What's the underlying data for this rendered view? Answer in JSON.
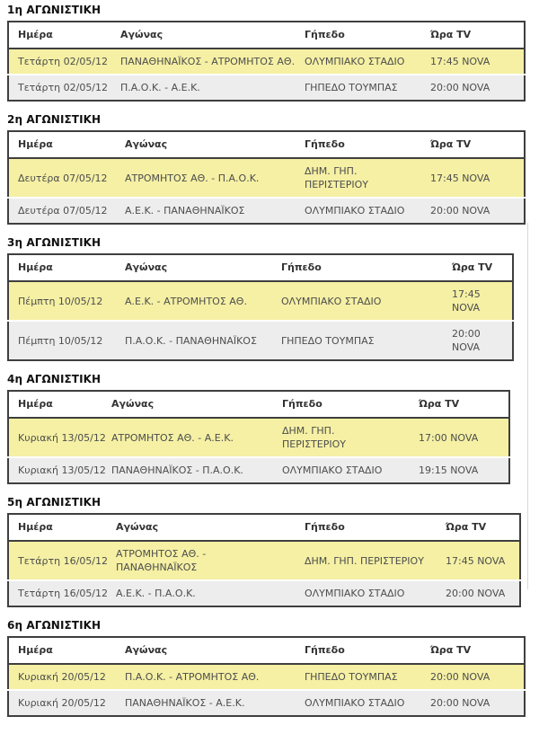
{
  "page": {
    "columns": {
      "day": "Ημέρα",
      "match": "Αγώνας",
      "venue": "Γήπεδο",
      "time": "Ώρα TV"
    },
    "colors": {
      "highlight_row": "#F5F0A4",
      "alt_row": "#EDEDED",
      "table_border": "#3F3F3F"
    },
    "sections": [
      {
        "title": "1η ΑΓΩΝΙΣΤΙΚΗ",
        "rows": [
          {
            "day": "Τετάρτη 02/05/12",
            "match": "ΠΑΝΑΘΗΝΑΪΚΟΣ - ΑΤΡΟΜΗΤΟΣ ΑΘ.",
            "venue": "ΟΛΥΜΠΙΑΚΟ ΣΤΑΔΙΟ",
            "time": "17:45 NOVA"
          },
          {
            "day": "Τετάρτη 02/05/12",
            "match": "Π.Α.Ο.Κ. - Α.Ε.Κ.",
            "venue": "ΓΗΠΕΔΟ ΤΟΥΜΠΑΣ",
            "time": "20:00 NOVA"
          }
        ]
      },
      {
        "title": "2η ΑΓΩΝΙΣΤΙΚΗ",
        "rows": [
          {
            "day": "Δευτέρα 07/05/12",
            "match": "ΑΤΡΟΜΗΤΟΣ ΑΘ. - Π.Α.Ο.Κ.",
            "venue": "ΔΗΜ. ΓΗΠ. ΠΕΡΙΣΤΕΡΙΟΥ",
            "time": "17:45 NOVA"
          },
          {
            "day": "Δευτέρα 07/05/12",
            "match": "Α.Ε.Κ. - ΠΑΝΑΘΗΝΑΪΚΟΣ",
            "venue": "ΟΛΥΜΠΙΑΚΟ ΣΤΑΔΙΟ",
            "time": "20:00 NOVA"
          }
        ]
      },
      {
        "title": "3η ΑΓΩΝΙΣΤΙΚΗ",
        "rows": [
          {
            "day": "Πέμπτη 10/05/12",
            "match": "Α.Ε.Κ. - ΑΤΡΟΜΗΤΟΣ ΑΘ.",
            "venue": "ΟΛΥΜΠΙΑΚΟ ΣΤΑΔΙΟ",
            "time": "17:45 NOVA"
          },
          {
            "day": "Πέμπτη 10/05/12",
            "match": "Π.Α.Ο.Κ. - ΠΑΝΑΘΗΝΑΪΚΟΣ",
            "venue": "ΓΗΠΕΔΟ ΤΟΥΜΠΑΣ",
            "time": "20:00 NOVA"
          }
        ]
      },
      {
        "title": "4η ΑΓΩΝΙΣΤΙΚΗ",
        "rows": [
          {
            "day": "Κυριακή 13/05/12",
            "match": "ΑΤΡΟΜΗΤΟΣ ΑΘ. - Α.Ε.Κ.",
            "venue": "ΔΗΜ. ΓΗΠ. ΠΕΡΙΣΤΕΡΙΟΥ",
            "time": "17:00 NOVA"
          },
          {
            "day": "Κυριακή 13/05/12",
            "match": "ΠΑΝΑΘΗΝΑΪΚΟΣ - Π.Α.Ο.Κ.",
            "venue": "ΟΛΥΜΠΙΑΚΟ ΣΤΑΔΙΟ",
            "time": "19:15 NOVA"
          }
        ]
      },
      {
        "title": "5η ΑΓΩΝΙΣΤΙΚΗ",
        "rows": [
          {
            "day": "Τετάρτη 16/05/12",
            "match": "ΑΤΡΟΜΗΤΟΣ ΑΘ. - ΠΑΝΑΘΗΝΑΪΚΟΣ",
            "venue": "ΔΗΜ. ΓΗΠ. ΠΕΡΙΣΤΕΡΙΟΥ",
            "time": "17:45 NOVA"
          },
          {
            "day": "Τετάρτη 16/05/12",
            "match": "Α.Ε.Κ. - Π.Α.Ο.Κ.",
            "venue": "ΟΛΥΜΠΙΑΚΟ ΣΤΑΔΙΟ",
            "time": "20:00 NOVA"
          }
        ]
      },
      {
        "title": "6η ΑΓΩΝΙΣΤΙΚΗ",
        "rows": [
          {
            "day": "Κυριακή 20/05/12",
            "match": "Π.Α.Ο.Κ. - ΑΤΡΟΜΗΤΟΣ ΑΘ.",
            "venue": "ΓΗΠΕΔΟ ΤΟΥΜΠΑΣ",
            "time": "20:00 NOVA"
          },
          {
            "day": "Κυριακή 20/05/12",
            "match": "ΠΑΝΑΘΗΝΑΪΚΟΣ - Α.Ε.Κ.",
            "venue": "ΟΛΥΜΠΙΑΚΟ ΣΤΑΔΙΟ",
            "time": "20:00 NOVA"
          }
        ]
      }
    ]
  }
}
